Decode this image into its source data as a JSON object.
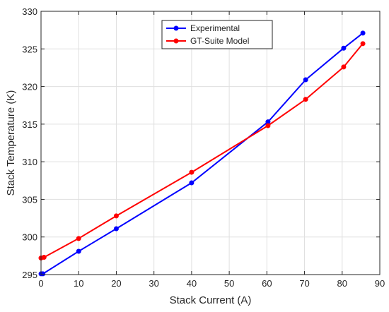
{
  "chart_data": {
    "type": "line",
    "title": "",
    "xlabel": "Stack Current (A)",
    "ylabel": "Stack Temperature (K)",
    "xlim": [
      0,
      90
    ],
    "ylim": [
      295,
      330
    ],
    "xticks": [
      "0",
      "10",
      "20",
      "30",
      "40",
      "50",
      "60",
      "70",
      "80",
      "90"
    ],
    "yticks": [
      "295",
      "300",
      "305",
      "310",
      "315",
      "320",
      "325",
      "330"
    ],
    "grid": true,
    "legend_position": "top-center",
    "series": [
      {
        "name": "Experimental",
        "color": "#0000ff",
        "x": [
          0,
          0.5,
          10,
          20,
          40,
          60.3,
          70.3,
          80.4,
          85.5
        ],
        "y": [
          295.1,
          295.1,
          298.1,
          301.1,
          307.2,
          315.3,
          320.9,
          325.1,
          327.1
        ]
      },
      {
        "name": "GT-Suite Model",
        "color": "#ff0000",
        "x": [
          0,
          0.8,
          10,
          20,
          40,
          60.3,
          70.3,
          80.4,
          85.5
        ],
        "y": [
          297.2,
          297.3,
          299.8,
          302.8,
          308.6,
          314.8,
          318.3,
          322.6,
          325.7
        ]
      }
    ]
  }
}
